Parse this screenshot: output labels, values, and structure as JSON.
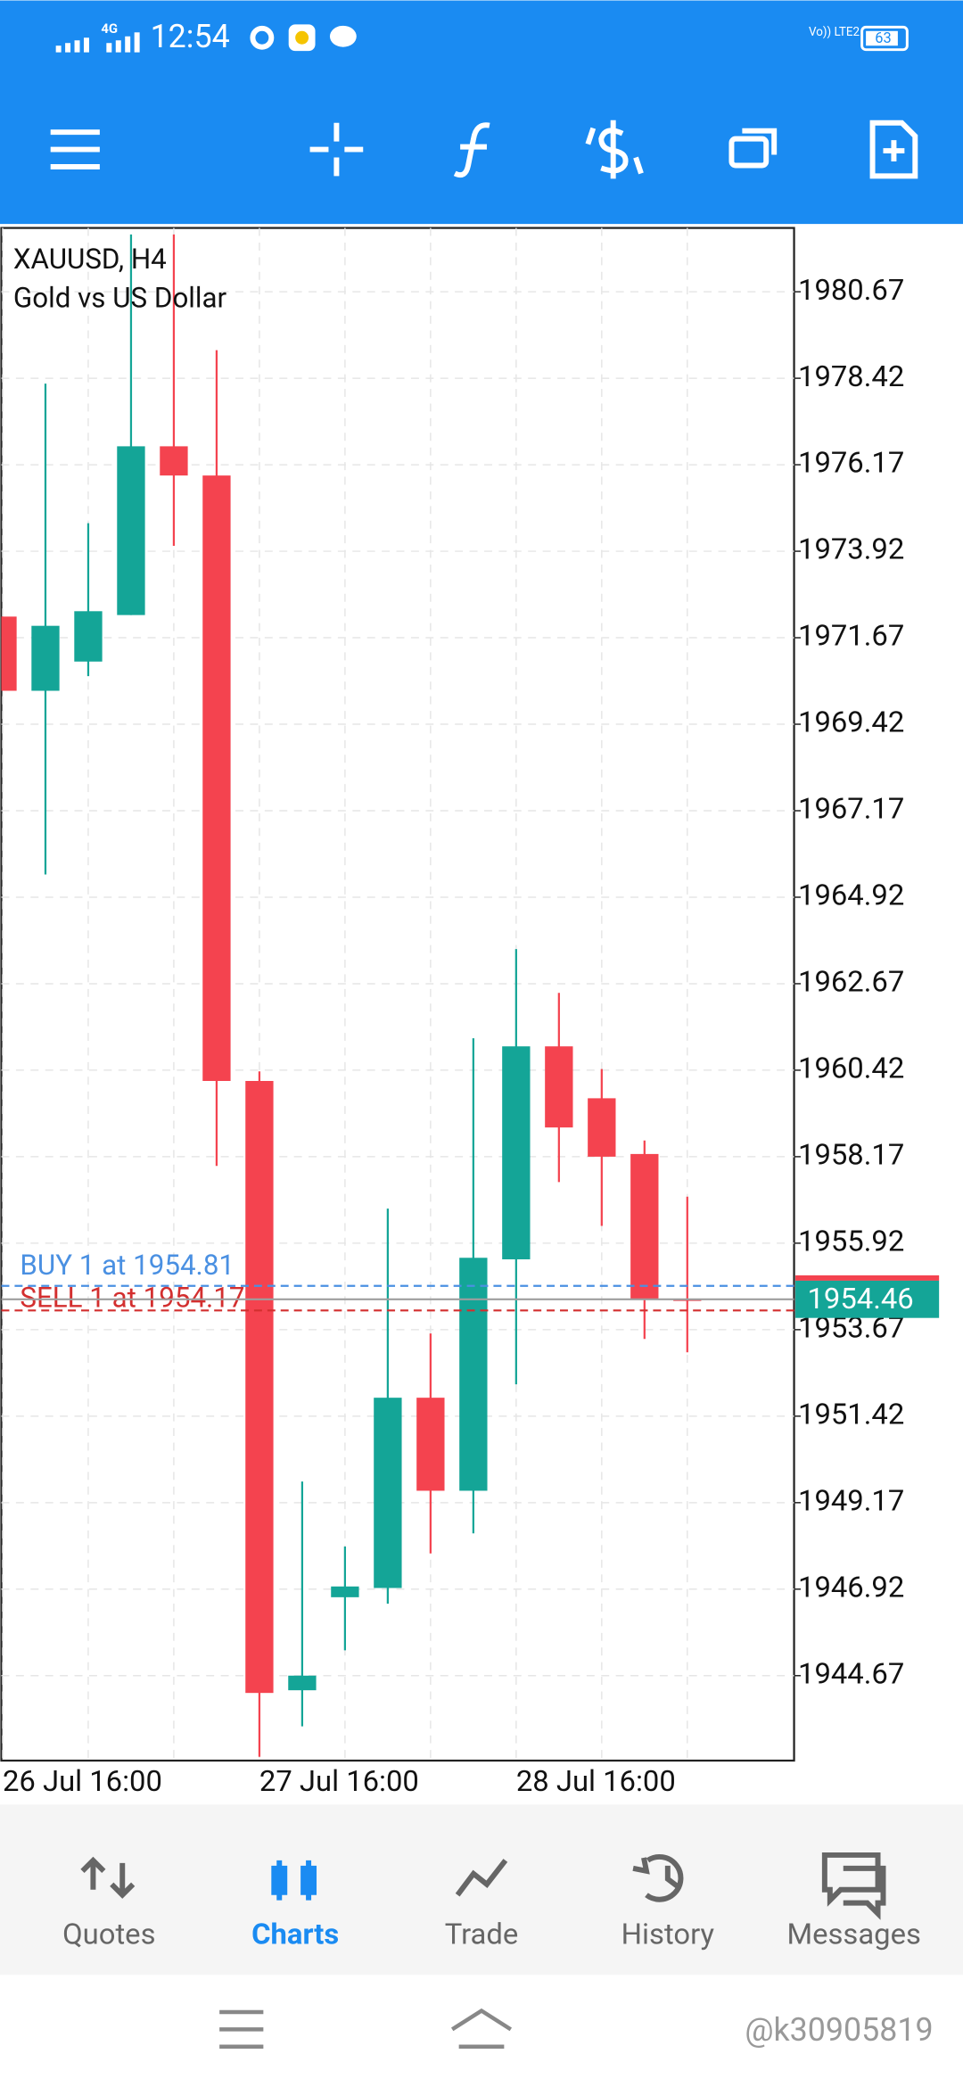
{
  "status_bar": {
    "time": "12:54",
    "network": "4G",
    "battery": "63"
  },
  "chart_data": {
    "type": "candlestick",
    "title": "XAUUSD, H4",
    "subtitle": "Gold vs US Dollar",
    "categories": [
      "26 Jul 16:00",
      null,
      null,
      null,
      null,
      null,
      "27 Jul 16:00",
      null,
      null,
      null,
      null,
      null,
      "28 Jul 16:00",
      null,
      null,
      null,
      null
    ],
    "open": [
      1972.22,
      1970.29,
      1971.05,
      1972.26,
      1976.65,
      1975.89,
      1960.14,
      1944.29,
      1946.71,
      1946.95,
      1951.9,
      1949.48,
      1955.5,
      1961.04,
      1959.69,
      1958.24,
      1954.47
    ],
    "high": [
      1972.22,
      1978.28,
      1974.65,
      1982.16,
      1982.16,
      1979.15,
      1960.39,
      1949.72,
      1948.03,
      1956.82,
      1953.57,
      1961.25,
      1963.57,
      1962.43,
      1960.45,
      1958.59,
      1957.13
    ],
    "low": [
      1970.29,
      1965.51,
      1970.67,
      1972.26,
      1974.06,
      1957.93,
      1942.56,
      1943.35,
      1945.33,
      1946.54,
      1947.85,
      1948.37,
      1952.25,
      1957.51,
      1956.37,
      1953.43,
      1953.08
    ],
    "close": [
      1970.29,
      1971.98,
      1972.36,
      1976.65,
      1975.89,
      1960.14,
      1944.22,
      1944.67,
      1946.99,
      1951.9,
      1949.48,
      1955.54,
      1961.04,
      1958.93,
      1958.17,
      1954.47,
      1954.46
    ],
    "up_color": "#14a597",
    "down_color": "#f4434f",
    "ylim": [
      1942.46,
      1982.33
    ],
    "yticks": [
      1980.67,
      1978.42,
      1976.17,
      1973.92,
      1971.67,
      1969.42,
      1967.17,
      1964.92,
      1962.67,
      1960.42,
      1958.17,
      1955.92,
      1953.67,
      1951.42,
      1949.17,
      1946.92,
      1944.67
    ],
    "grid": true,
    "orders": [
      {
        "label": "BUY 1 at 1954.81",
        "value": 1954.81,
        "color": "#4a90e2"
      },
      {
        "label": "SELL 1 at 1954.17",
        "value": 1954.17,
        "color": "#d32f2f"
      }
    ],
    "last_price": 1954.46
  },
  "nav": {
    "items": [
      "Quotes",
      "Charts",
      "Trade",
      "History",
      "Messages"
    ],
    "active": 1
  },
  "watermark": "@k30905819"
}
